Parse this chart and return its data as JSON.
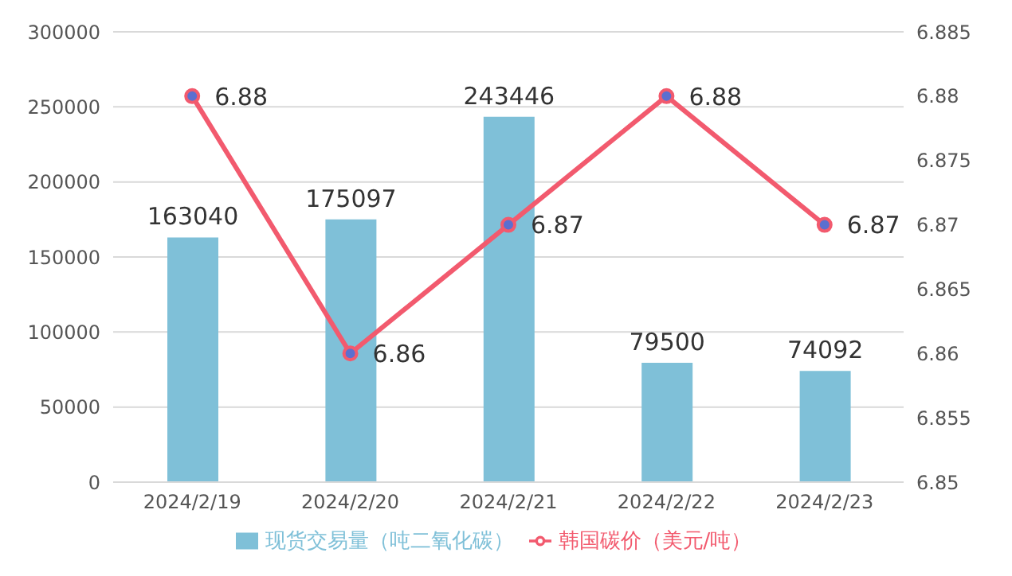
{
  "chart_data": {
    "type": "bar",
    "categories": [
      "2024/2/19",
      "2024/2/20",
      "2024/2/21",
      "2024/2/22",
      "2024/2/23"
    ],
    "series": [
      {
        "name": "现货交易量（吨二氧化碳）",
        "color": "#7fc0d8",
        "values": [
          163040,
          175097,
          243446,
          79500,
          74092
        ]
      },
      {
        "name": "韩国碳价（美元/吨）",
        "type": "line",
        "axis": "y2",
        "color": "#f25a6e",
        "values": [
          6.88,
          6.86,
          6.87,
          6.88,
          6.87
        ]
      }
    ],
    "ylim": [
      0,
      300000
    ],
    "yticks": [
      0,
      50000,
      100000,
      150000,
      200000,
      250000,
      300000
    ],
    "y2lim": [
      6.85,
      6.885
    ],
    "y2ticks": [
      6.85,
      6.855,
      6.86,
      6.865,
      6.87,
      6.875,
      6.88,
      6.885
    ],
    "grid": "y",
    "legend": "bottom",
    "data_labels": true,
    "marker": "circle"
  }
}
